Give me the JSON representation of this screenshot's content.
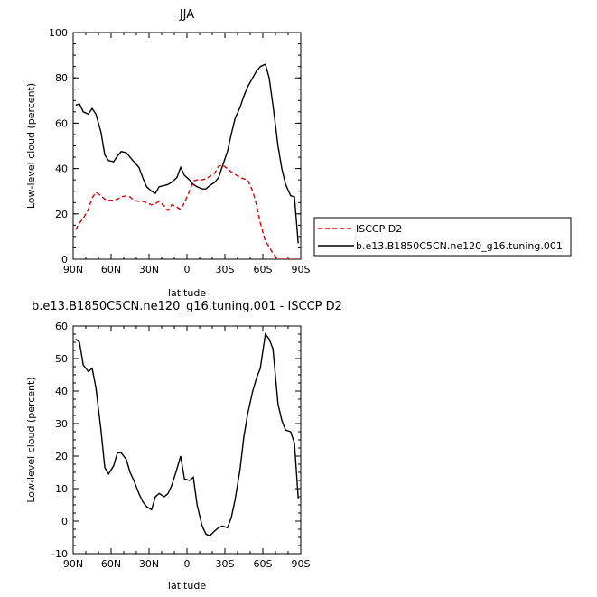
{
  "chart_data": [
    {
      "type": "line",
      "title": "JJA",
      "xlabel": "latitude",
      "ylabel": "Low-level cloud (percent)",
      "xlim": [
        90,
        -90
      ],
      "ylim": [
        0,
        100
      ],
      "x_ticks": [
        90,
        60,
        30,
        0,
        -30,
        -60,
        -90
      ],
      "x_tick_labels": [
        "90N",
        "60N",
        "30N",
        "0",
        "30S",
        "60S",
        "90S"
      ],
      "y_ticks": [
        0,
        20,
        40,
        60,
        80,
        100
      ],
      "y_tick_labels": [
        "0",
        "20",
        "40",
        "60",
        "80",
        "100"
      ],
      "legend_position": "right",
      "series": [
        {
          "name": "ISCCP D2",
          "color": "#e00000",
          "dash": "dashed",
          "x": [
            88,
            85,
            82,
            78,
            75,
            72,
            68,
            65,
            62,
            58,
            55,
            52,
            48,
            45,
            42,
            38,
            35,
            32,
            28,
            25,
            22,
            18,
            15,
            12,
            8,
            5,
            2,
            -2,
            -5,
            -8,
            -12,
            -15,
            -18,
            -22,
            -25,
            -28,
            -32,
            -35,
            -38,
            -42,
            -45,
            -48,
            -52,
            -55,
            -58,
            -62,
            -65,
            -68,
            -72,
            -75,
            -78,
            -82,
            -85,
            -88
          ],
          "y": [
            13,
            16,
            18,
            22,
            27,
            29.5,
            28,
            26.5,
            26,
            26,
            26.5,
            27.5,
            28,
            27.5,
            26,
            25.5,
            25.5,
            25,
            24,
            24.5,
            25.5,
            23.5,
            21.5,
            24,
            23,
            22,
            25,
            30,
            34.5,
            35,
            35,
            35.5,
            36.5,
            38,
            41,
            41.5,
            40,
            38.5,
            37.5,
            36,
            35.5,
            35,
            30,
            24,
            16,
            8,
            5.5,
            2.5,
            0,
            0,
            0,
            0,
            0,
            0
          ]
        },
        {
          "name": "b.e13.B1850C5CN.ne120_g16.tuning.001",
          "color": "#000000",
          "dash": "solid",
          "x": [
            88,
            85,
            82,
            78,
            75,
            72,
            68,
            65,
            62,
            58,
            55,
            52,
            48,
            45,
            42,
            38,
            35,
            32,
            28,
            25,
            22,
            18,
            15,
            12,
            8,
            5,
            2,
            -2,
            -5,
            -8,
            -12,
            -15,
            -18,
            -22,
            -25,
            -28,
            -32,
            -35,
            -38,
            -42,
            -45,
            -48,
            -52,
            -55,
            -58,
            -62,
            -65,
            -68,
            -72,
            -75,
            -78,
            -82,
            -85,
            -88
          ],
          "y": [
            68,
            68.5,
            65,
            64,
            66.5,
            64,
            56,
            46,
            43.5,
            43,
            45.5,
            47.5,
            47,
            45,
            43,
            40.5,
            36,
            32,
            30,
            29,
            32,
            32.5,
            33,
            34,
            36,
            40.5,
            37,
            35,
            33,
            32,
            31,
            31,
            32.5,
            34,
            36,
            41,
            47.5,
            55,
            62,
            67,
            72,
            76,
            80,
            83,
            85,
            86,
            80,
            68,
            50,
            40,
            33,
            28,
            27.5,
            7
          ]
        }
      ]
    },
    {
      "type": "line",
      "title": "b.e13.B1850C5CN.ne120_g16.tuning.001 - ISCCP D2",
      "xlabel": "latitude",
      "ylabel": "Low-level cloud (percent)",
      "xlim": [
        90,
        -90
      ],
      "ylim": [
        -10,
        60
      ],
      "x_ticks": [
        90,
        60,
        30,
        0,
        -30,
        -60,
        -90
      ],
      "x_tick_labels": [
        "90N",
        "60N",
        "30N",
        "0",
        "30S",
        "60S",
        "90S"
      ],
      "y_ticks": [
        -10,
        0,
        10,
        20,
        30,
        40,
        50,
        60
      ],
      "y_tick_labels": [
        "-10",
        "0",
        "10",
        "20",
        "30",
        "40",
        "50",
        "60"
      ],
      "series": [
        {
          "color": "#000000",
          "dash": "solid",
          "x": [
            88,
            85,
            82,
            78,
            75,
            72,
            68,
            65,
            62,
            58,
            55,
            52,
            48,
            45,
            42,
            38,
            35,
            32,
            28,
            25,
            22,
            18,
            15,
            12,
            8,
            5,
            2,
            -2,
            -5,
            -8,
            -12,
            -15,
            -18,
            -22,
            -25,
            -28,
            -32,
            -35,
            -38,
            -42,
            -45,
            -48,
            -52,
            -55,
            -58,
            -62,
            -65,
            -68,
            -72,
            -75,
            -78,
            -82,
            -85,
            -88
          ],
          "y": [
            56,
            55,
            48,
            46,
            47,
            41,
            28,
            16.5,
            14.5,
            17,
            21,
            21,
            19,
            15,
            12.5,
            8.5,
            6,
            4.5,
            3.5,
            7.5,
            8.5,
            7.5,
            8.5,
            11,
            16,
            20,
            13,
            12.5,
            13.5,
            5,
            -1.5,
            -4,
            -4.5,
            -3,
            -2,
            -1.5,
            -2,
            1,
            6.5,
            16,
            26,
            33,
            40,
            44,
            47,
            57.5,
            56,
            53,
            36,
            31,
            28,
            27.5,
            24,
            7
          ]
        }
      ]
    }
  ]
}
